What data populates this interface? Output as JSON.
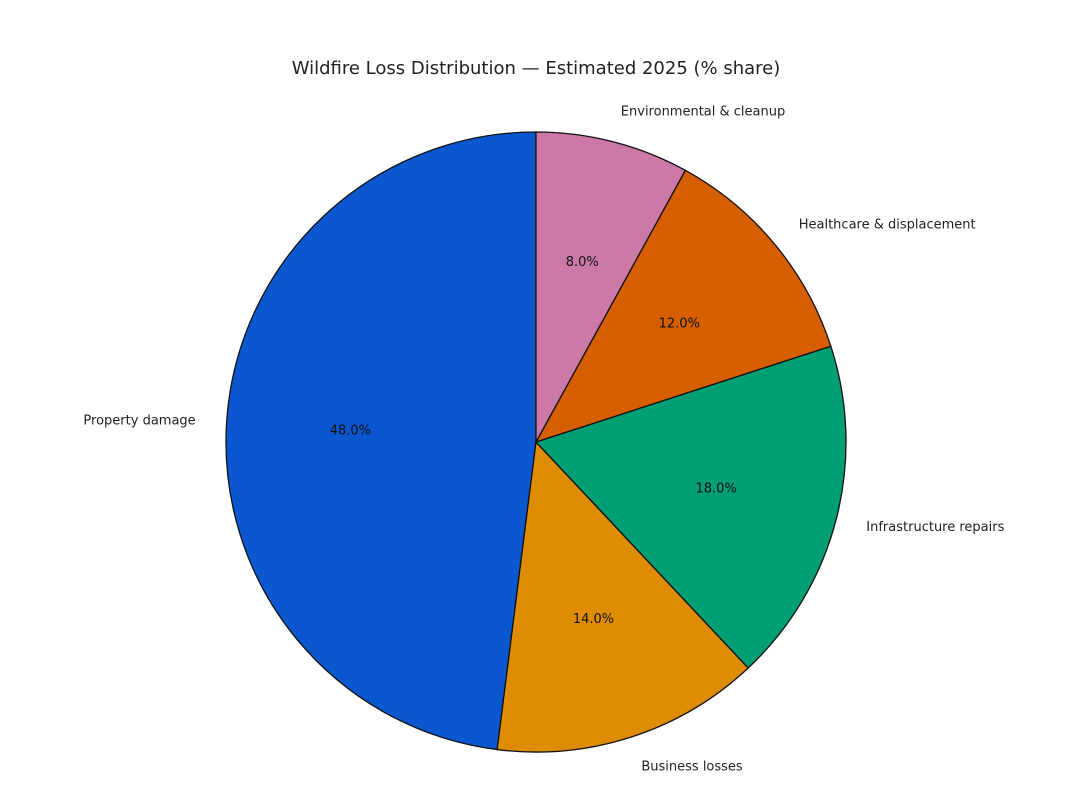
{
  "chart_data": {
    "type": "pie",
    "title": "Wildfire Loss Distribution — Estimated 2025 (% share)",
    "start_angle_deg": 90,
    "direction": "counterclockwise",
    "slices": [
      {
        "label": "Property damage",
        "value": 48.0,
        "pct_label": "48.0%",
        "color": "#0b57d0"
      },
      {
        "label": "Business losses",
        "value": 14.0,
        "pct_label": "14.0%",
        "color": "#de8c04"
      },
      {
        "label": "Infrastructure repairs",
        "value": 18.0,
        "pct_label": "18.0%",
        "color": "#009e73"
      },
      {
        "label": "Healthcare & displacement",
        "value": 12.0,
        "pct_label": "12.0%",
        "color": "#d55e00"
      },
      {
        "label": "Environmental & cleanup",
        "value": 8.0,
        "pct_label": "8.0%",
        "color": "#cc79a7"
      }
    ]
  }
}
